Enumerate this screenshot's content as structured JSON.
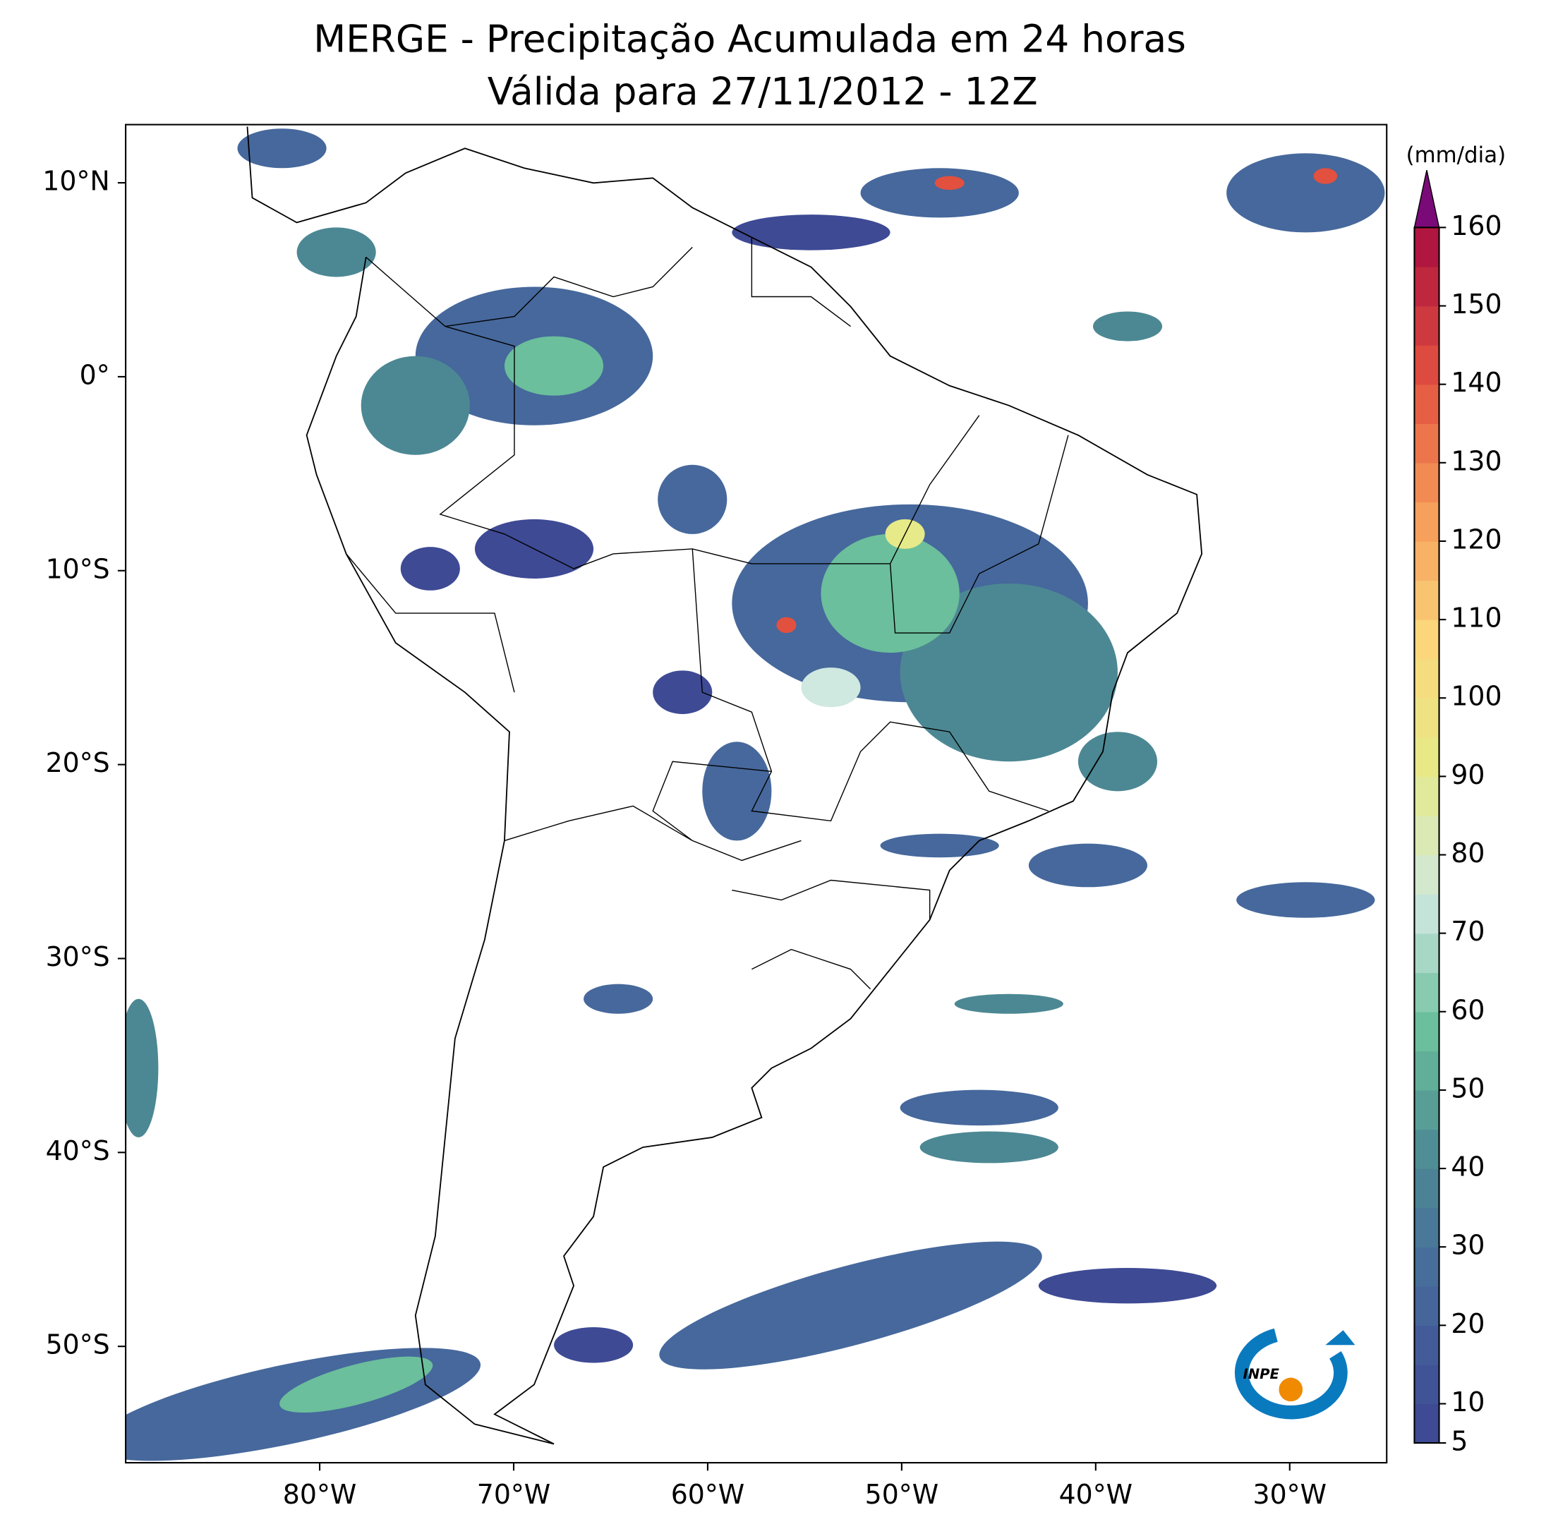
{
  "title": [
    "MERGE - Precipitação Acumulada em 24 horas",
    "Válida para 27/11/2012 - 12Z"
  ],
  "map": {
    "xlim": [
      -90,
      -25
    ],
    "ylim": [
      -56,
      13
    ],
    "xticks": [
      {
        "value": -80,
        "label": "80°W"
      },
      {
        "value": -70,
        "label": "70°W"
      },
      {
        "value": -60,
        "label": "60°W"
      },
      {
        "value": -50,
        "label": "50°W"
      },
      {
        "value": -40,
        "label": "40°W"
      },
      {
        "value": -30,
        "label": "30°W"
      }
    ],
    "yticks": [
      {
        "value": 10,
        "label": "10°N"
      },
      {
        "value": 0,
        "label": "0°"
      },
      {
        "value": -10,
        "label": "10°S"
      },
      {
        "value": -20,
        "label": "20°S"
      },
      {
        "value": -30,
        "label": "30°S"
      },
      {
        "value": -40,
        "label": "40°S"
      },
      {
        "value": -50,
        "label": "50°S"
      }
    ]
  },
  "colorbar": {
    "label": "(mm/dia)",
    "lim": [
      5,
      160
    ],
    "ticks": [
      5,
      10,
      20,
      30,
      40,
      50,
      60,
      70,
      80,
      90,
      100,
      110,
      120,
      130,
      140,
      150,
      160
    ],
    "colors": [
      "#3e4a94",
      "#46689c",
      "#4c8893",
      "#6bbf9c",
      "#cfe8e0",
      "#e6ea88",
      "#fbd67a",
      "#f59a58",
      "#e2503f",
      "#b0163f"
    ],
    "extend_color": "#7a0a77"
  },
  "logo": "INPE"
}
